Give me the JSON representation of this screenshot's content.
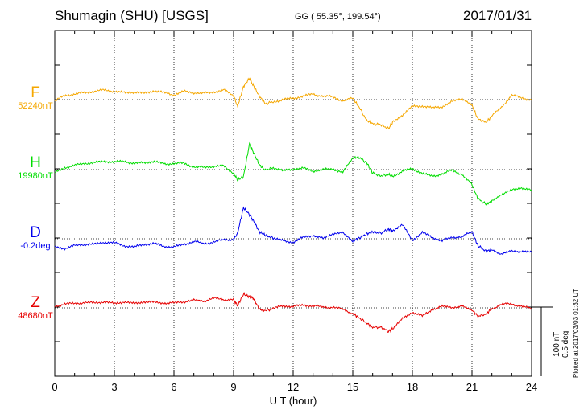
{
  "header": {
    "station": "Shumagin (SHU)  [USGS]",
    "coords": "GG ( 55.35°, 199.54°)",
    "date": "2017/01/31"
  },
  "footer": {
    "plotted": "Plotted at 2017/03/03 01:32 UT",
    "scale_top": "100 nT",
    "scale_bottom": "0.5 deg"
  },
  "chart_data": {
    "type": "line",
    "title": "Shumagin (SHU)  [USGS]",
    "xlabel": "U T (hour)",
    "ylabel": "",
    "xlim": [
      0,
      24
    ],
    "x_ticks": [
      0,
      3,
      6,
      9,
      12,
      15,
      18,
      21,
      24
    ],
    "grid": true,
    "scale": "100 nT / 0.5 deg",
    "series": [
      {
        "name": "F",
        "baseline": "52240nT",
        "color": "#f5a700",
        "offset_nT": 0,
        "x": [
          0,
          0.5,
          1,
          1.5,
          2,
          2.5,
          3,
          3.5,
          4,
          4.5,
          5,
          5.5,
          6,
          6.5,
          7,
          7.5,
          8,
          8.5,
          9,
          9.2,
          9.5,
          9.8,
          10,
          10.3,
          10.6,
          11,
          11.5,
          12,
          12.5,
          13,
          13.5,
          14,
          14.5,
          15,
          15.3,
          15.7,
          16,
          16.4,
          16.8,
          17,
          17.5,
          18,
          18.5,
          19,
          19.5,
          20,
          20.5,
          21,
          21.3,
          21.7,
          22,
          22.5,
          23,
          23.5,
          24
        ],
        "y": [
          -2,
          6,
          8,
          10,
          12,
          14,
          12,
          10,
          11,
          9,
          13,
          10,
          7,
          12,
          10,
          9,
          11,
          14,
          6,
          -10,
          19,
          31,
          20,
          5,
          -6,
          -3,
          0,
          2,
          5,
          8,
          5,
          4,
          -2,
          2,
          -10,
          -30,
          -35,
          -36,
          -42,
          -33,
          -22,
          -10,
          -9,
          -12,
          -10,
          -3,
          2,
          -8,
          -28,
          -33,
          -24,
          -10,
          6,
          3,
          -1
        ]
      },
      {
        "name": "H",
        "baseline": "19980nT",
        "color": "#00dd00",
        "offset_nT": 0,
        "x": [
          0,
          0.5,
          1,
          1.5,
          2,
          2.5,
          3,
          3.5,
          4,
          4.5,
          5,
          5.5,
          6,
          6.5,
          7,
          7.5,
          8,
          8.5,
          9,
          9.2,
          9.5,
          9.8,
          10,
          10.3,
          10.6,
          11,
          11.5,
          12,
          12.5,
          13,
          13.5,
          14,
          14.5,
          15,
          15.3,
          15.7,
          16,
          16.4,
          16.8,
          17,
          17.5,
          18,
          18.5,
          19,
          19.5,
          20,
          20.5,
          21,
          21.3,
          21.7,
          22,
          22.5,
          23,
          23.5,
          24
        ],
        "y": [
          -5,
          3,
          6,
          9,
          10,
          12,
          11,
          12,
          9,
          10,
          12,
          8,
          9,
          9,
          4,
          3,
          5,
          5,
          -5,
          -15,
          -10,
          37,
          25,
          7,
          -1,
          3,
          -2,
          1,
          2,
          -2,
          0,
          1,
          -4,
          17,
          18,
          10,
          -5,
          -9,
          -7,
          -10,
          -2,
          1,
          -5,
          -10,
          -6,
          -1,
          -7,
          -22,
          -42,
          -50,
          -46,
          -35,
          -30,
          -26,
          -30
        ]
      },
      {
        "name": "D",
        "baseline": "-0.2deg",
        "color": "#0000ee",
        "offset_nT": 0,
        "x": [
          0,
          0.5,
          1,
          1.5,
          2,
          2.5,
          3,
          3.5,
          4,
          4.5,
          5,
          5.5,
          6,
          6.5,
          7,
          7.5,
          8,
          8.5,
          9,
          9.2,
          9.5,
          9.8,
          10,
          10.3,
          10.6,
          11,
          11.5,
          12,
          12.5,
          13,
          13.5,
          14,
          14.5,
          15,
          15.3,
          15.7,
          16,
          16.4,
          16.8,
          17,
          17.5,
          18,
          18.5,
          19,
          19.5,
          20,
          20.5,
          21,
          21.3,
          21.7,
          22,
          22.5,
          23,
          23.5,
          24
        ],
        "y": [
          -12,
          -14,
          -10,
          -8,
          -8,
          -5,
          -6,
          -10,
          -12,
          -8,
          -7,
          -11,
          -12,
          -8,
          -4,
          -7,
          -5,
          -1,
          -1,
          8,
          45,
          35,
          26,
          10,
          5,
          1,
          -3,
          -5,
          2,
          5,
          0,
          8,
          8,
          -3,
          1,
          7,
          10,
          8,
          14,
          12,
          20,
          -2,
          9,
          2,
          -3,
          2,
          3,
          10,
          -10,
          -18,
          -16,
          -22,
          -18,
          -18,
          -20
        ]
      },
      {
        "name": "Z",
        "baseline": "48680nT",
        "color": "#e60000",
        "offset_nT": 0,
        "x": [
          0,
          0.5,
          1,
          1.5,
          2,
          2.5,
          3,
          3.5,
          4,
          4.5,
          5,
          5.5,
          6,
          6.5,
          7,
          7.5,
          8,
          8.5,
          9,
          9.2,
          9.5,
          9.8,
          10,
          10.3,
          10.6,
          11,
          11.5,
          12,
          12.5,
          13,
          13.5,
          14,
          14.5,
          15,
          15.3,
          15.7,
          16,
          16.4,
          16.8,
          17,
          17.5,
          18,
          18.5,
          19,
          19.5,
          20,
          20.5,
          21,
          21.3,
          21.7,
          22,
          22.5,
          23,
          23.5,
          24
        ],
        "y": [
          2,
          6,
          6,
          8,
          7,
          9,
          6,
          9,
          6,
          9,
          8,
          7,
          7,
          9,
          11,
          10,
          14,
          12,
          12,
          3,
          20,
          16,
          14,
          -2,
          -4,
          -1,
          3,
          2,
          4,
          3,
          1,
          1,
          -2,
          -8,
          -14,
          -22,
          -28,
          -28,
          -34,
          -30,
          -16,
          -6,
          -12,
          -2,
          2,
          1,
          2,
          -3,
          -12,
          -9,
          -1,
          5,
          6,
          2,
          -1
        ]
      }
    ]
  }
}
